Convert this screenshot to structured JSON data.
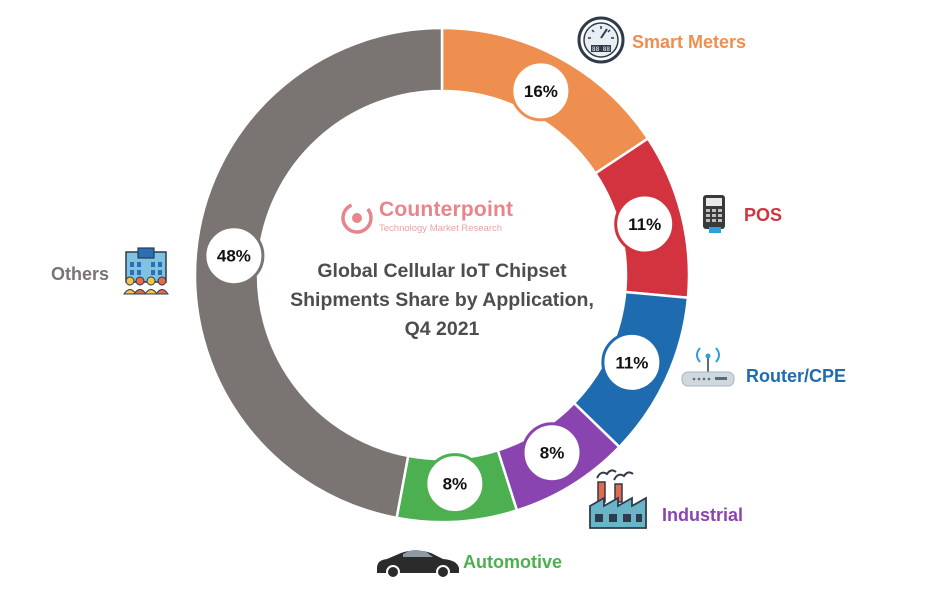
{
  "chart_data": {
    "type": "pie",
    "style": "donut",
    "title": "Global Cellular IoT Chipset Shipments Share by Application, Q4 2021",
    "slices": [
      {
        "label": "Smart Meters",
        "value": 16,
        "display": "16%",
        "color": "#ee8f4f",
        "icon": "smart-meter-icon"
      },
      {
        "label": "POS",
        "value": 11,
        "display": "11%",
        "color": "#d2333f",
        "icon": "pos-terminal-icon"
      },
      {
        "label": "Router/CPE",
        "value": 11,
        "display": "11%",
        "color": "#1f6bb0",
        "icon": "router-icon"
      },
      {
        "label": "Industrial",
        "value": 8,
        "display": "8%",
        "color": "#8a44b0",
        "icon": "factory-icon"
      },
      {
        "label": "Automotive",
        "value": 8,
        "display": "8%",
        "color": "#4caf50",
        "icon": "car-icon"
      },
      {
        "label": "Others",
        "value": 48,
        "display": "48%",
        "color": "#7a7472",
        "icon": "office-building-icon"
      }
    ]
  },
  "branding": {
    "name": "Counterpoint",
    "tagline": "Technology Market Research"
  }
}
